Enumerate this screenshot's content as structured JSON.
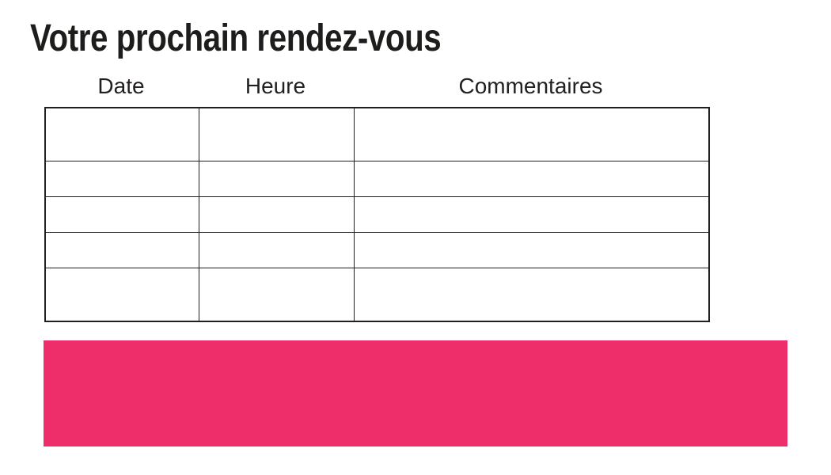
{
  "title": "Votre prochain rendez-vous",
  "table": {
    "headers": [
      "Date",
      "Heure",
      "Commentaires"
    ],
    "rows": [
      [
        "",
        "",
        ""
      ],
      [
        "",
        "",
        ""
      ],
      [
        "",
        "",
        ""
      ],
      [
        "",
        "",
        ""
      ],
      [
        "",
        "",
        ""
      ]
    ]
  },
  "banner": {
    "text": ""
  },
  "colors": {
    "accent_pink": "#EE2D6B",
    "text": "#1D1D1B",
    "table_border": "#231F20",
    "background": "#FFFFFF"
  }
}
